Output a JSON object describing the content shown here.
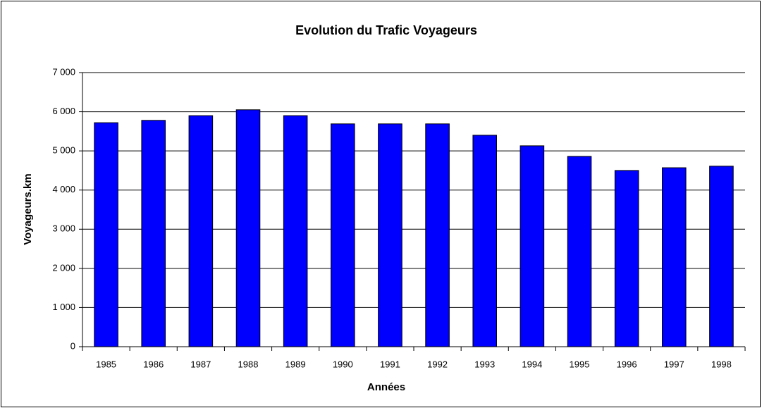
{
  "chart_data": {
    "type": "bar",
    "title": "Evolution du Trafic Voyageurs",
    "x_label": "Années",
    "y_label": "Voyageurs.km",
    "categories": [
      "1985",
      "1986",
      "1987",
      "1988",
      "1989",
      "1990",
      "1991",
      "1992",
      "1993",
      "1994",
      "1995",
      "1996",
      "1997",
      "1998"
    ],
    "values": [
      5720,
      5780,
      5900,
      6050,
      5900,
      5690,
      5690,
      5690,
      5400,
      5130,
      4860,
      4500,
      4570,
      4610
    ],
    "color": "#0000ff",
    "ylim": [
      0,
      7000
    ],
    "yticks": [
      0,
      {
        "value": 1000,
        "label": "1 000"
      },
      {
        "value": 2000,
        "label": "2 000"
      },
      {
        "value": 3000,
        "label": "3 000"
      },
      {
        "value": 4000,
        "label": "4 000"
      },
      {
        "value": 5000,
        "label": "5 000"
      },
      {
        "value": 6000,
        "label": "6 000"
      },
      {
        "value": 7000,
        "label": "7 000"
      }
    ],
    "grid": true
  }
}
